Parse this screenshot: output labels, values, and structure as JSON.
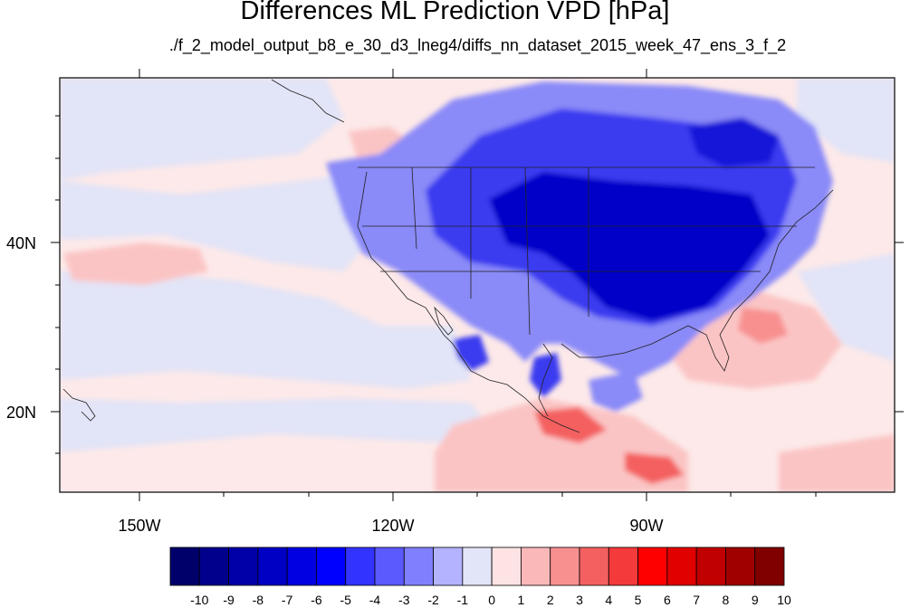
{
  "title": "Differences ML Prediction VPD [hPa]",
  "subtitle": "./f_2_model_output_b8_e_30_d3_lneg4/diffs_nn_dataset_2015_week_47_ens_3_f_2",
  "lon_labels": [
    "150W",
    "120W",
    "90W"
  ],
  "lat_labels": [
    "40N",
    "20N"
  ],
  "colorbar": {
    "labels": [
      "-10",
      "-9",
      "-8",
      "-7",
      "-6",
      "-5",
      "-4",
      "-3",
      "-2",
      "-1",
      "0",
      "1",
      "2",
      "3",
      "4",
      "5",
      "6",
      "7",
      "8",
      "9",
      "10"
    ],
    "colors": [
      "#00006b",
      "#00008c",
      "#0000a8",
      "#0000c4",
      "#0000e0",
      "#0000ff",
      "#3333ff",
      "#5a5aff",
      "#8080ff",
      "#b3b3ff",
      "#e2e4f7",
      "#fde3e3",
      "#fbb8b8",
      "#f89090",
      "#f46060",
      "#f43a3a",
      "#ff0000",
      "#e00000",
      "#c00000",
      "#a00000",
      "#800000"
    ]
  },
  "field_colors": {
    "ocean_west": "#fde9e9",
    "ocean_pale_blue": "#e2e4f7",
    "deep_blue": "#0000c8",
    "mid_blue": "#3a3af0",
    "light_blue": "#8a8af8",
    "pale_red": "#fbc4c4",
    "mid_red": "#f47070",
    "strong_red": "#e83030"
  }
}
